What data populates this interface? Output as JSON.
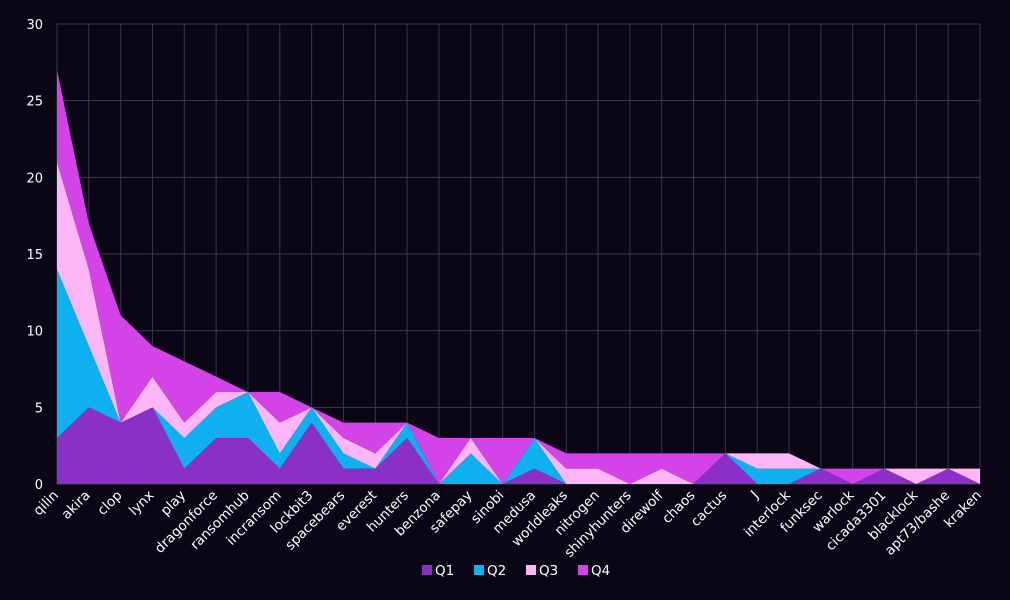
{
  "chart_data": {
    "type": "area",
    "stacked": true,
    "categories": [
      "qilin",
      "akira",
      "clop",
      "lynx",
      "play",
      "dragonforce",
      "ransomhub",
      "incransom",
      "lockbit3",
      "spacebears",
      "everest",
      "hunters",
      "benzona",
      "safepay",
      "sinobi",
      "medusa",
      "worldleaks",
      "nitrogen",
      "shinyhunters",
      "direwolf",
      "chaos",
      "cactus",
      "J",
      "interlock",
      "funksec",
      "warlock",
      "cicada3301",
      "blacklock",
      "apt73/bashe",
      "kraken"
    ],
    "series": [
      {
        "name": "Q1",
        "color": "#8a2fc8",
        "values": [
          3,
          5,
          4,
          5,
          1,
          3,
          3,
          1,
          4,
          1,
          1,
          3,
          0,
          0,
          0,
          1,
          0,
          0,
          0,
          0,
          0,
          2,
          0,
          0,
          1,
          0,
          1,
          0,
          1,
          0
        ]
      },
      {
        "name": "Q2",
        "color": "#0fb0ef",
        "values": [
          11,
          4,
          0,
          0,
          2,
          2,
          3,
          1,
          1,
          1,
          0,
          1,
          0,
          2,
          0,
          2,
          0,
          0,
          0,
          0,
          0,
          0,
          1,
          1,
          0,
          0,
          0,
          0,
          0,
          0
        ]
      },
      {
        "name": "Q3",
        "color": "#ffb6f7",
        "values": [
          7,
          5,
          0,
          2,
          1,
          1,
          0,
          2,
          0,
          1,
          1,
          0,
          0,
          1,
          0,
          0,
          1,
          1,
          0,
          1,
          0,
          0,
          1,
          1,
          0,
          0,
          0,
          1,
          0,
          1
        ]
      },
      {
        "name": "Q4",
        "color": "#d343e8",
        "values": [
          6,
          3,
          7,
          2,
          4,
          1,
          0,
          2,
          0,
          1,
          2,
          0,
          3,
          0,
          3,
          0,
          1,
          1,
          2,
          1,
          2,
          0,
          0,
          0,
          0,
          1,
          0,
          0,
          0,
          0
        ]
      }
    ],
    "ylim": [
      0,
      30
    ],
    "yticks": [
      0,
      5,
      10,
      15,
      20,
      25,
      30
    ],
    "grid": true,
    "legend_position": "bottom"
  }
}
